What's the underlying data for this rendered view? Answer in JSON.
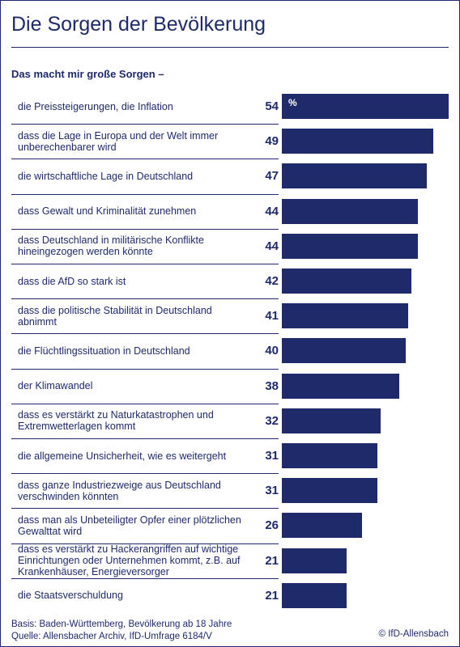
{
  "title": "Die Sorgen der Bevölkerung",
  "subtitle": "Das macht mir große Sorgen –",
  "footer": {
    "basis": "Basis: Baden-Württemberg, Bevölkerung ab 18 Jahre",
    "source": "Quelle: Allensbacher Archiv, IfD-Umfrage 6184/V",
    "copyright": "© IfD-Allensbach"
  },
  "colors": {
    "accent": "#1f2a6b",
    "background": "#ffffff"
  },
  "chart_data": {
    "type": "bar",
    "orientation": "horizontal",
    "unit": "%",
    "xlim": [
      0,
      54
    ],
    "categories": [
      "die Preissteigerungen, die Inflation",
      "dass die Lage in Europa und der Welt immer unberechenbarer wird",
      "die wirtschaftliche Lage in Deutschland",
      "dass Gewalt und Kriminalität zunehmen",
      "dass Deutschland in militärische Konflikte hineingezogen werden könnte",
      "dass die AfD so stark ist",
      "dass die politische Stabilität in Deutschland abnimmt",
      "die Flüchtlingssituation in Deutschland",
      "der Klimawandel",
      "dass es verstärkt zu Naturkatastrophen und Extremwetterlagen kommt",
      "die allgemeine Unsicherheit, wie es weitergeht",
      "dass ganze Industriezweige aus Deutschland verschwinden könnten",
      "dass man als Unbeteiligter Opfer einer plötzlichen Gewalttat wird",
      "dass es verstärkt zu Hackerangriffen auf wichtige Einrichtungen oder Unternehmen kommt, z.B. auf Krankenhäuser, Energieversorger",
      "die Staatsverschuldung"
    ],
    "values": [
      54,
      49,
      47,
      44,
      44,
      42,
      41,
      40,
      38,
      32,
      31,
      31,
      26,
      21,
      21
    ]
  }
}
